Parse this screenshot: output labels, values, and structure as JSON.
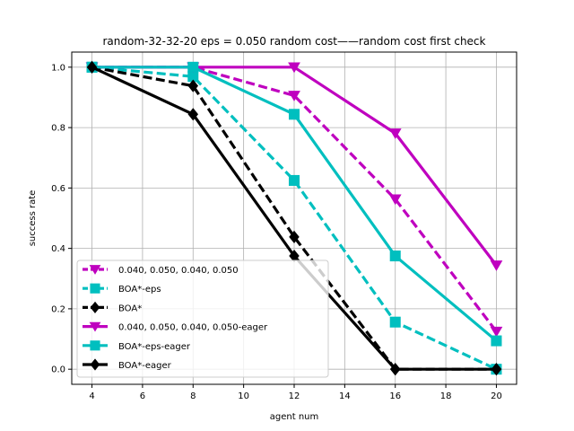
{
  "chart_data": {
    "type": "line",
    "title": "random-32-32-20    eps = 0.050    random cost——random cost    first check",
    "xlabel": "agent num",
    "ylabel": "success rate",
    "x": [
      4,
      8,
      12,
      16,
      20
    ],
    "xlim": [
      3.2,
      20.8
    ],
    "ylim": [
      -0.05,
      1.05
    ],
    "xticks": [
      4,
      6,
      8,
      10,
      12,
      14,
      16,
      18,
      20
    ],
    "yticks": [
      0.0,
      0.2,
      0.4,
      0.6,
      0.8,
      1.0
    ],
    "ytick_labels": [
      "0.0",
      "0.2",
      "0.4",
      "0.6",
      "0.8",
      "1.0"
    ],
    "grid": true,
    "legend_position": "lower-left",
    "series": [
      {
        "name": "0.040, 0.050, 0.040, 0.050",
        "color": "#bf00bf",
        "marker": "triangle-down",
        "style": "dashed",
        "values": [
          1.0,
          1.0,
          0.906,
          0.563,
          0.125
        ]
      },
      {
        "name": "BOA*-eps",
        "color": "#00bfbf",
        "marker": "square",
        "style": "dashed",
        "values": [
          1.0,
          0.969,
          0.625,
          0.156,
          0.0
        ]
      },
      {
        "name": "BOA*",
        "color": "#000000",
        "marker": "diamond",
        "style": "dashed",
        "values": [
          1.0,
          0.938,
          0.438,
          0.0,
          0.0
        ]
      },
      {
        "name": "0.040, 0.050, 0.040, 0.050-eager",
        "color": "#bf00bf",
        "marker": "triangle-down",
        "style": "solid",
        "values": [
          1.0,
          1.0,
          1.0,
          0.781,
          0.344
        ]
      },
      {
        "name": "BOA*-eps-eager",
        "color": "#00bfbf",
        "marker": "square",
        "style": "solid",
        "values": [
          1.0,
          1.0,
          0.844,
          0.375,
          0.094
        ]
      },
      {
        "name": "BOA*-eager",
        "color": "#000000",
        "marker": "diamond",
        "style": "solid",
        "values": [
          1.0,
          0.844,
          0.375,
          0.0,
          0.0
        ]
      }
    ]
  }
}
